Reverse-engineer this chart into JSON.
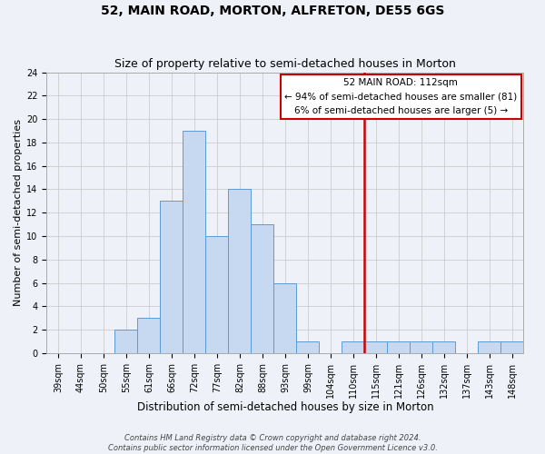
{
  "title": "52, MAIN ROAD, MORTON, ALFRETON, DE55 6GS",
  "subtitle": "Size of property relative to semi-detached houses in Morton",
  "xlabel": "Distribution of semi-detached houses by size in Morton",
  "ylabel": "Number of semi-detached properties",
  "bin_labels": [
    "39sqm",
    "44sqm",
    "50sqm",
    "55sqm",
    "61sqm",
    "66sqm",
    "72sqm",
    "77sqm",
    "82sqm",
    "88sqm",
    "93sqm",
    "99sqm",
    "104sqm",
    "110sqm",
    "115sqm",
    "121sqm",
    "126sqm",
    "132sqm",
    "137sqm",
    "143sqm",
    "148sqm"
  ],
  "bar_values": [
    0,
    0,
    0,
    2,
    3,
    13,
    19,
    10,
    14,
    11,
    6,
    1,
    0,
    1,
    1,
    1,
    1,
    1,
    0,
    1,
    1
  ],
  "bar_color": "#c6d9f0",
  "bar_edge_color": "#5b9bd5",
  "grid_color": "#cccccc",
  "background_color": "#eef2f8",
  "vline_x": 13.5,
  "vline_color": "#cc0000",
  "annotation_title": "52 MAIN ROAD: 112sqm",
  "annotation_line1": "← 94% of semi-detached houses are smaller (81)",
  "annotation_line2": "6% of semi-detached houses are larger (5) →",
  "annotation_box_facecolor": "#ffffff",
  "annotation_box_edgecolor": "#cc0000",
  "footer_line1": "Contains HM Land Registry data © Crown copyright and database right 2024.",
  "footer_line2": "Contains public sector information licensed under the Open Government Licence v3.0.",
  "ylim": [
    0,
    24
  ],
  "yticks": [
    0,
    2,
    4,
    6,
    8,
    10,
    12,
    14,
    16,
    18,
    20,
    22,
    24
  ],
  "title_fontsize": 10,
  "subtitle_fontsize": 9,
  "xlabel_fontsize": 8.5,
  "ylabel_fontsize": 8,
  "tick_fontsize": 7,
  "annotation_title_fontsize": 8,
  "annotation_body_fontsize": 7.5,
  "footer_fontsize": 6
}
